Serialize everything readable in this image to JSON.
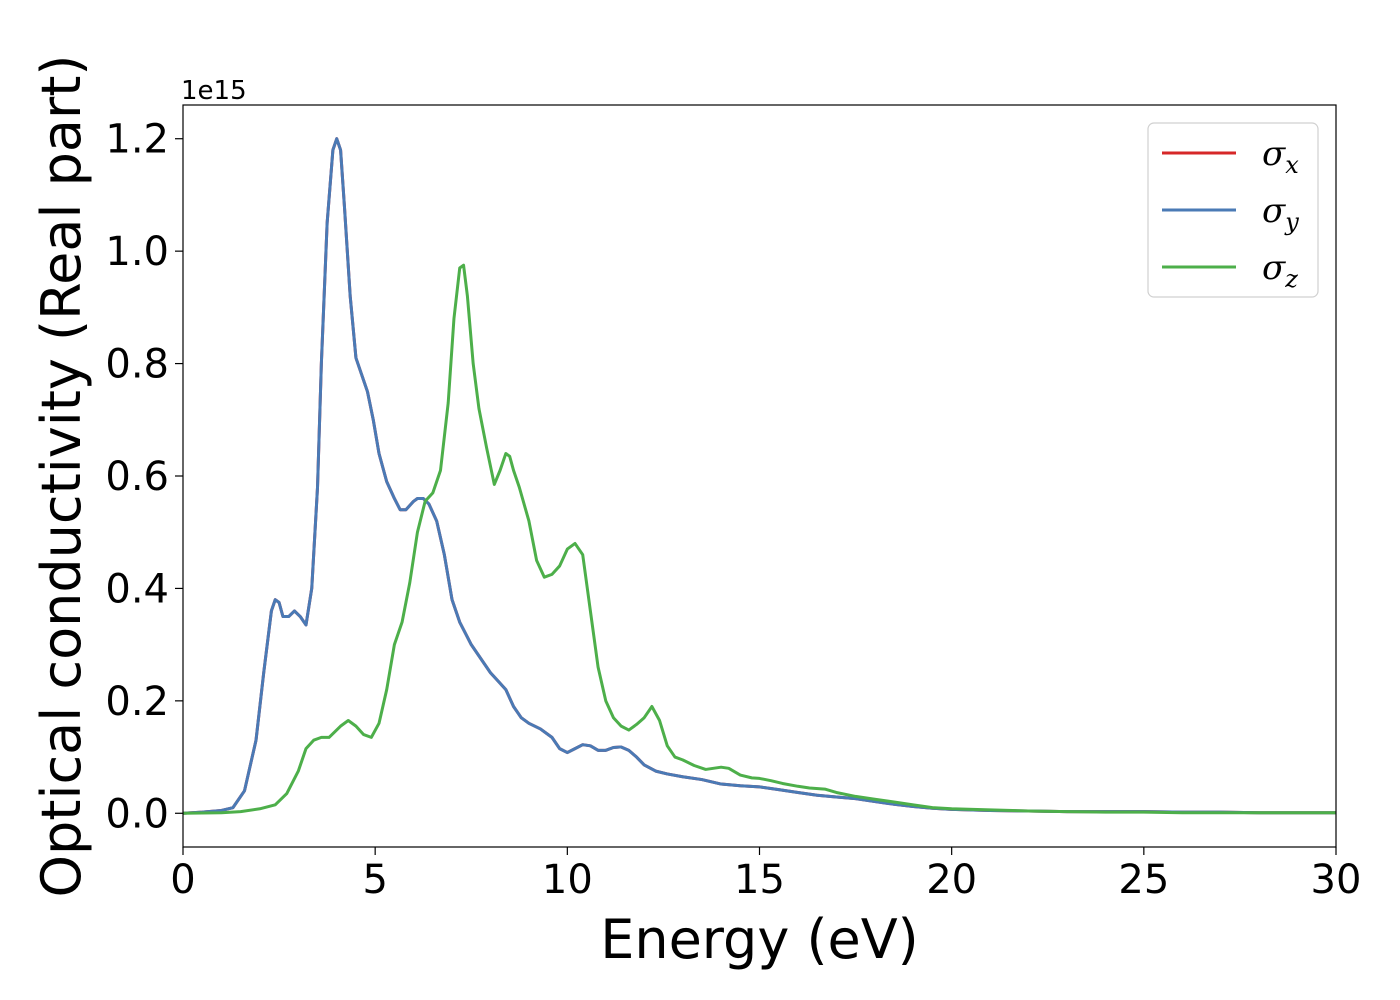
{
  "chart_data": {
    "type": "line",
    "xlabel": "Energy (eV)",
    "ylabel": "Optical conductivity (Real part)",
    "y_offset_text": "1e15",
    "xlim": [
      0,
      30
    ],
    "ylim": [
      -0.06,
      1.26
    ],
    "x_ticks": [
      0,
      5,
      10,
      15,
      20,
      25,
      30
    ],
    "x_tick_labels": [
      "0",
      "5",
      "10",
      "15",
      "20",
      "25",
      "30"
    ],
    "y_ticks": [
      0.0,
      0.2,
      0.4,
      0.6,
      0.8,
      1.0,
      1.2
    ],
    "y_tick_labels": [
      "0.0",
      "0.2",
      "0.4",
      "0.6",
      "0.8",
      "1.0",
      "1.2"
    ],
    "grid": false,
    "legend_position": "top-right",
    "series": [
      {
        "name": "σ",
        "subscript": "x",
        "color": "#d62728",
        "x": [
          0,
          0.5,
          1.0,
          1.3,
          1.6,
          1.9,
          2.1,
          2.3,
          2.4,
          2.5,
          2.6,
          2.75,
          2.9,
          3.05,
          3.2,
          3.35,
          3.5,
          3.6,
          3.75,
          3.9,
          4.0,
          4.1,
          4.2,
          4.35,
          4.5,
          4.65,
          4.8,
          4.95,
          5.1,
          5.3,
          5.5,
          5.65,
          5.8,
          6.0,
          6.1,
          6.25,
          6.4,
          6.6,
          6.8,
          7.0,
          7.2,
          7.5,
          7.8,
          8.0,
          8.2,
          8.4,
          8.6,
          8.8,
          9.0,
          9.3,
          9.6,
          9.8,
          10.0,
          10.2,
          10.4,
          10.6,
          10.8,
          11.0,
          11.2,
          11.4,
          11.6,
          11.8,
          12.0,
          12.3,
          12.6,
          13.0,
          13.5,
          14.0,
          14.5,
          15.0,
          15.5,
          16.0,
          16.5,
          17.0,
          17.5,
          18.0,
          18.5,
          19.0,
          19.5,
          20.0,
          21.0,
          22.0,
          23.0,
          24.0,
          25.0,
          26.0,
          27.0,
          28.0,
          29.0,
          30.0
        ],
        "y": [
          0.0,
          0.002,
          0.005,
          0.01,
          0.04,
          0.13,
          0.25,
          0.36,
          0.38,
          0.375,
          0.35,
          0.35,
          0.36,
          0.35,
          0.335,
          0.4,
          0.58,
          0.8,
          1.05,
          1.18,
          1.2,
          1.18,
          1.08,
          0.92,
          0.81,
          0.78,
          0.75,
          0.7,
          0.64,
          0.59,
          0.56,
          0.54,
          0.54,
          0.555,
          0.56,
          0.56,
          0.55,
          0.52,
          0.46,
          0.38,
          0.34,
          0.3,
          0.27,
          0.25,
          0.235,
          0.22,
          0.19,
          0.17,
          0.16,
          0.15,
          0.135,
          0.115,
          0.108,
          0.115,
          0.122,
          0.12,
          0.112,
          0.112,
          0.117,
          0.118,
          0.112,
          0.1,
          0.086,
          0.075,
          0.07,
          0.065,
          0.06,
          0.052,
          0.049,
          0.047,
          0.042,
          0.037,
          0.032,
          0.029,
          0.026,
          0.021,
          0.016,
          0.012,
          0.009,
          0.007,
          0.005,
          0.004,
          0.003,
          0.003,
          0.003,
          0.002,
          0.002,
          0.001,
          0.001,
          0.001
        ]
      },
      {
        "name": "σ",
        "subscript": "y",
        "color": "#4a7ab5",
        "x": [
          0,
          0.5,
          1.0,
          1.3,
          1.6,
          1.9,
          2.1,
          2.3,
          2.4,
          2.5,
          2.6,
          2.75,
          2.9,
          3.05,
          3.2,
          3.35,
          3.5,
          3.6,
          3.75,
          3.9,
          4.0,
          4.1,
          4.2,
          4.35,
          4.5,
          4.65,
          4.8,
          4.95,
          5.1,
          5.3,
          5.5,
          5.65,
          5.8,
          6.0,
          6.1,
          6.25,
          6.4,
          6.6,
          6.8,
          7.0,
          7.2,
          7.5,
          7.8,
          8.0,
          8.2,
          8.4,
          8.6,
          8.8,
          9.0,
          9.3,
          9.6,
          9.8,
          10.0,
          10.2,
          10.4,
          10.6,
          10.8,
          11.0,
          11.2,
          11.4,
          11.6,
          11.8,
          12.0,
          12.3,
          12.6,
          13.0,
          13.5,
          14.0,
          14.5,
          15.0,
          15.5,
          16.0,
          16.5,
          17.0,
          17.5,
          18.0,
          18.5,
          19.0,
          19.5,
          20.0,
          21.0,
          22.0,
          23.0,
          24.0,
          25.0,
          26.0,
          27.0,
          28.0,
          29.0,
          30.0
        ],
        "y": [
          0.0,
          0.002,
          0.005,
          0.01,
          0.04,
          0.13,
          0.25,
          0.36,
          0.38,
          0.375,
          0.35,
          0.35,
          0.36,
          0.35,
          0.335,
          0.4,
          0.58,
          0.8,
          1.05,
          1.18,
          1.2,
          1.18,
          1.08,
          0.92,
          0.81,
          0.78,
          0.75,
          0.7,
          0.64,
          0.59,
          0.56,
          0.54,
          0.54,
          0.555,
          0.56,
          0.56,
          0.55,
          0.52,
          0.46,
          0.38,
          0.34,
          0.3,
          0.27,
          0.25,
          0.235,
          0.22,
          0.19,
          0.17,
          0.16,
          0.15,
          0.135,
          0.115,
          0.108,
          0.115,
          0.122,
          0.12,
          0.112,
          0.112,
          0.117,
          0.118,
          0.112,
          0.1,
          0.086,
          0.075,
          0.07,
          0.065,
          0.06,
          0.052,
          0.049,
          0.047,
          0.042,
          0.037,
          0.032,
          0.029,
          0.026,
          0.021,
          0.016,
          0.012,
          0.009,
          0.007,
          0.005,
          0.004,
          0.003,
          0.003,
          0.003,
          0.002,
          0.002,
          0.001,
          0.001,
          0.001
        ]
      },
      {
        "name": "σ",
        "subscript": "z",
        "color": "#4daf4a",
        "x": [
          0,
          1.0,
          1.5,
          2.0,
          2.4,
          2.7,
          3.0,
          3.2,
          3.4,
          3.6,
          3.8,
          3.95,
          4.1,
          4.3,
          4.5,
          4.7,
          4.9,
          5.1,
          5.3,
          5.5,
          5.7,
          5.9,
          6.1,
          6.3,
          6.5,
          6.7,
          6.9,
          7.05,
          7.2,
          7.3,
          7.4,
          7.55,
          7.7,
          7.9,
          8.1,
          8.25,
          8.4,
          8.5,
          8.6,
          8.75,
          9.0,
          9.2,
          9.4,
          9.6,
          9.8,
          10.0,
          10.2,
          10.4,
          10.6,
          10.8,
          11.0,
          11.2,
          11.4,
          11.6,
          11.8,
          12.0,
          12.2,
          12.4,
          12.6,
          12.8,
          13.0,
          13.3,
          13.6,
          14.0,
          14.2,
          14.5,
          14.8,
          15.0,
          15.3,
          15.6,
          16.0,
          16.3,
          16.7,
          17.0,
          17.5,
          18.0,
          18.5,
          19.0,
          19.5,
          20.0,
          21.0,
          22.0,
          23.0,
          24.0,
          25.0,
          26.0,
          27.0,
          28.0,
          29.0,
          30.0
        ],
        "y": [
          0.0,
          0.001,
          0.003,
          0.008,
          0.015,
          0.035,
          0.075,
          0.115,
          0.13,
          0.135,
          0.135,
          0.145,
          0.155,
          0.165,
          0.155,
          0.14,
          0.135,
          0.16,
          0.22,
          0.3,
          0.34,
          0.41,
          0.5,
          0.555,
          0.57,
          0.61,
          0.73,
          0.88,
          0.97,
          0.975,
          0.92,
          0.8,
          0.72,
          0.65,
          0.585,
          0.61,
          0.64,
          0.635,
          0.61,
          0.58,
          0.52,
          0.45,
          0.42,
          0.425,
          0.44,
          0.47,
          0.48,
          0.46,
          0.36,
          0.26,
          0.2,
          0.17,
          0.155,
          0.148,
          0.158,
          0.17,
          0.19,
          0.165,
          0.12,
          0.1,
          0.095,
          0.085,
          0.078,
          0.082,
          0.08,
          0.068,
          0.063,
          0.062,
          0.058,
          0.053,
          0.048,
          0.045,
          0.043,
          0.037,
          0.03,
          0.025,
          0.02,
          0.015,
          0.01,
          0.008,
          0.006,
          0.004,
          0.003,
          0.002,
          0.002,
          0.001,
          0.001,
          0.001,
          0.001,
          0.001
        ]
      }
    ]
  }
}
